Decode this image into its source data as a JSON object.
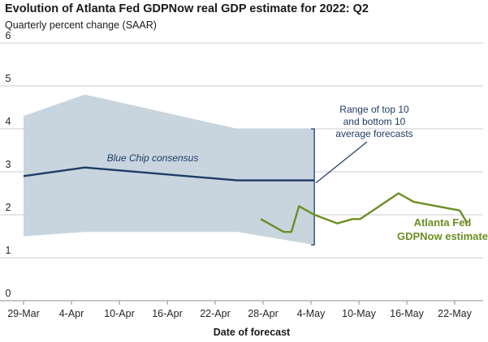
{
  "chart_data": {
    "type": "line",
    "title": "Evolution of Atlanta Fed GDPNow real GDP estimate for 2022: Q2",
    "subtitle": "Quarterly percent change (SAAR)",
    "xlabel": "Date of forecast",
    "ylabel": "",
    "x_tick_labels": [
      "29-Mar",
      "4-Apr",
      "10-Apr",
      "16-Apr",
      "22-Apr",
      "28-Apr",
      "4-May",
      "10-May",
      "16-May",
      "22-May"
    ],
    "y_tick_labels": [
      "0",
      "1",
      "2",
      "3",
      "4",
      "5",
      "6"
    ],
    "xlim": [
      "2022-03-29",
      "2022-05-27"
    ],
    "ylim": [
      0,
      6
    ],
    "grid": "horizontal",
    "annotations": {
      "blue_chip": "Blue Chip consensus",
      "range_lines": [
        "Range of top 10",
        "and bottom 10",
        "average forecasts"
      ],
      "gdpnow_lines": [
        "Atlanta Fed",
        "GDPNow estimate"
      ]
    },
    "series": [
      {
        "name": "Blue Chip consensus",
        "color": "#1f3b63",
        "points": [
          {
            "x": "2022-03-29",
            "y": 2.9
          },
          {
            "x": "2022-04-06",
            "y": 3.1
          },
          {
            "x": "2022-04-26",
            "y": 2.8
          },
          {
            "x": "2022-05-06",
            "y": 2.8
          }
        ]
      },
      {
        "name": "Top 10 average",
        "color": "#c5d3dd",
        "points": [
          {
            "x": "2022-03-29",
            "y": 4.3
          },
          {
            "x": "2022-04-06",
            "y": 4.8
          },
          {
            "x": "2022-04-26",
            "y": 4.0
          },
          {
            "x": "2022-05-06",
            "y": 4.0
          }
        ]
      },
      {
        "name": "Bottom 10 average",
        "color": "#c5d3dd",
        "points": [
          {
            "x": "2022-03-29",
            "y": 1.5
          },
          {
            "x": "2022-04-06",
            "y": 1.6
          },
          {
            "x": "2022-04-26",
            "y": 1.6
          },
          {
            "x": "2022-05-06",
            "y": 1.3
          }
        ]
      },
      {
        "name": "Atlanta Fed GDPNow estimate",
        "color": "#6b8e23",
        "points": [
          {
            "x": "2022-04-29",
            "y": 1.9
          },
          {
            "x": "2022-05-02",
            "y": 1.6
          },
          {
            "x": "2022-05-03",
            "y": 1.6
          },
          {
            "x": "2022-05-04",
            "y": 2.2
          },
          {
            "x": "2022-05-06",
            "y": 2.0
          },
          {
            "x": "2022-05-09",
            "y": 1.8
          },
          {
            "x": "2022-05-11",
            "y": 1.9
          },
          {
            "x": "2022-05-12",
            "y": 1.9
          },
          {
            "x": "2022-05-17",
            "y": 2.5
          },
          {
            "x": "2022-05-19",
            "y": 2.3
          },
          {
            "x": "2022-05-25",
            "y": 2.1
          },
          {
            "x": "2022-05-26",
            "y": 1.8
          }
        ]
      }
    ]
  }
}
